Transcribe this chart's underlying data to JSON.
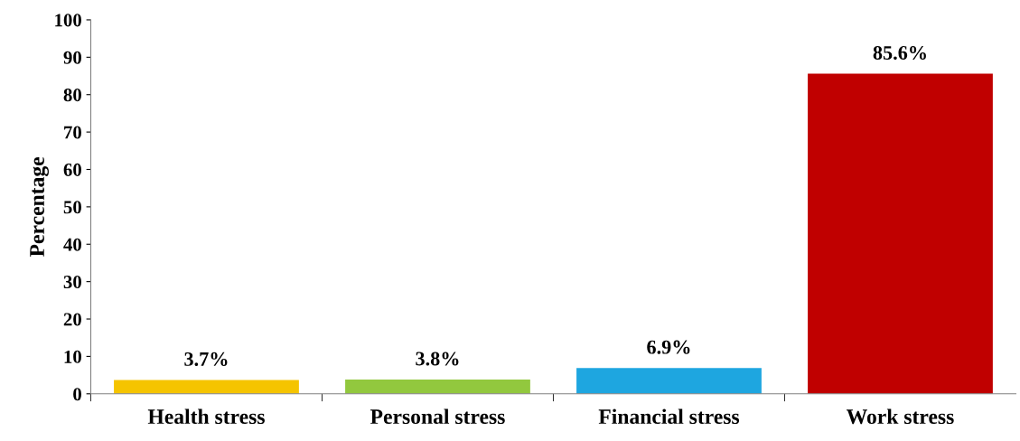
{
  "chart_data": {
    "type": "bar",
    "ylabel": "Percentage",
    "categories": [
      "Health stress",
      "Personal stress",
      "Financial stress",
      "Work stress"
    ],
    "values": [
      3.7,
      3.8,
      6.9,
      85.6
    ],
    "colors": [
      "#f5c400",
      "#92c83e",
      "#1ea6e0",
      "#c00000"
    ],
    "value_labels": [
      "3.7%",
      "3.8%",
      "6.9%",
      "85.6%"
    ],
    "ylim": [
      0,
      100
    ],
    "yticks": [
      0,
      10,
      20,
      30,
      40,
      50,
      60,
      70,
      80,
      90,
      100
    ],
    "grid": false
  }
}
